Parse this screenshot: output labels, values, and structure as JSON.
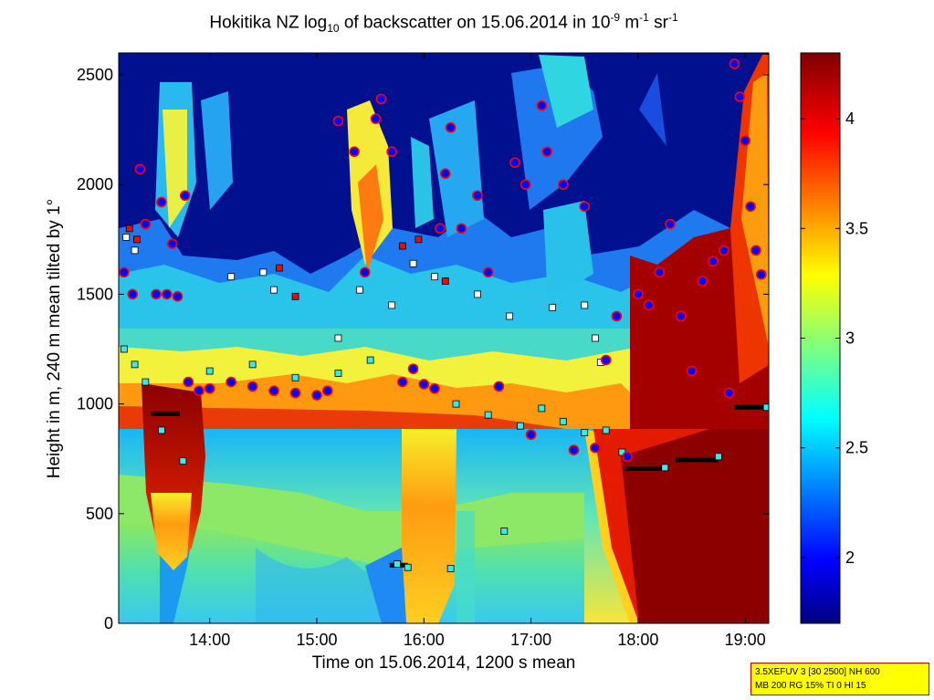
{
  "chart_data": {
    "type": "heatmap",
    "title": {
      "prefix": "Hokitika NZ log",
      "log_base": "10",
      "middle": " of backscatter on 15.06.2014 in 10",
      "exp1": "-9",
      "mid2": " m",
      "exp2": "-1",
      "mid3": " sr",
      "exp3": "-1"
    },
    "xlabel": "Time on 15.06.2014, 1200 s mean",
    "ylabel": "Height in m, 240 m mean tilted by 1°",
    "x_ticks": [
      "14:00",
      "15:00",
      "16:00",
      "17:00",
      "18:00",
      "19:00"
    ],
    "x_tick_hours": [
      14,
      15,
      16,
      17,
      18,
      19
    ],
    "xlim_hours": [
      13.15,
      19.22
    ],
    "y_ticks": [
      0,
      500,
      1000,
      1500,
      2000,
      2500
    ],
    "ylim": [
      0,
      2600
    ],
    "colorbar": {
      "ticks": [
        2,
        2.5,
        3,
        3.5,
        4
      ],
      "range": [
        1.7,
        4.3
      ],
      "colormap": "jet"
    },
    "cloud_base_black_segments": [
      {
        "t0": 13.45,
        "t1": 13.72,
        "h": 955
      },
      {
        "t0": 15.68,
        "t1": 15.85,
        "h": 265
      },
      {
        "t0": 17.88,
        "t1": 18.22,
        "h": 705
      },
      {
        "t0": 18.35,
        "t1": 18.75,
        "h": 745
      },
      {
        "t0": 18.9,
        "t1": 19.2,
        "h": 985
      }
    ],
    "layer_top_red_blue_markers": [
      {
        "t": 13.2,
        "h": 1600
      },
      {
        "t": 13.28,
        "h": 1500
      },
      {
        "t": 13.35,
        "h": 2070
      },
      {
        "t": 13.4,
        "h": 1820
      },
      {
        "t": 13.5,
        "h": 1500
      },
      {
        "t": 13.6,
        "h": 1500
      },
      {
        "t": 13.7,
        "h": 1490
      },
      {
        "t": 13.55,
        "h": 1920
      },
      {
        "t": 13.65,
        "h": 1730
      },
      {
        "t": 13.77,
        "h": 1950
      },
      {
        "t": 13.8,
        "h": 1100
      },
      {
        "t": 13.9,
        "h": 1060
      },
      {
        "t": 14.0,
        "h": 1070
      },
      {
        "t": 14.2,
        "h": 1100
      },
      {
        "t": 14.4,
        "h": 1080
      },
      {
        "t": 14.6,
        "h": 1060
      },
      {
        "t": 14.8,
        "h": 1050
      },
      {
        "t": 15.0,
        "h": 1040
      },
      {
        "t": 15.1,
        "h": 1060
      },
      {
        "t": 15.2,
        "h": 2290
      },
      {
        "t": 15.35,
        "h": 2150
      },
      {
        "t": 15.45,
        "h": 1600
      },
      {
        "t": 15.55,
        "h": 2300
      },
      {
        "t": 15.6,
        "h": 2390
      },
      {
        "t": 15.7,
        "h": 2150
      },
      {
        "t": 15.8,
        "h": 1100
      },
      {
        "t": 15.9,
        "h": 1160
      },
      {
        "t": 16.0,
        "h": 1090
      },
      {
        "t": 16.1,
        "h": 1070
      },
      {
        "t": 16.15,
        "h": 1800
      },
      {
        "t": 16.2,
        "h": 2050
      },
      {
        "t": 16.25,
        "h": 2260
      },
      {
        "t": 16.35,
        "h": 1800
      },
      {
        "t": 16.5,
        "h": 1950
      },
      {
        "t": 16.6,
        "h": 1600
      },
      {
        "t": 16.7,
        "h": 1080
      },
      {
        "t": 16.85,
        "h": 2100
      },
      {
        "t": 16.95,
        "h": 2000
      },
      {
        "t": 17.0,
        "h": 860
      },
      {
        "t": 17.1,
        "h": 2360
      },
      {
        "t": 17.15,
        "h": 2150
      },
      {
        "t": 17.3,
        "h": 2000
      },
      {
        "t": 17.4,
        "h": 790
      },
      {
        "t": 17.5,
        "h": 1900
      },
      {
        "t": 17.6,
        "h": 800
      },
      {
        "t": 17.7,
        "h": 1200
      },
      {
        "t": 17.8,
        "h": 1400
      },
      {
        "t": 17.9,
        "h": 760
      },
      {
        "t": 18.0,
        "h": 1500
      },
      {
        "t": 18.1,
        "h": 1450
      },
      {
        "t": 18.2,
        "h": 1600
      },
      {
        "t": 18.3,
        "h": 1820
      },
      {
        "t": 18.4,
        "h": 1400
      },
      {
        "t": 18.5,
        "h": 1150
      },
      {
        "t": 18.6,
        "h": 1560
      },
      {
        "t": 18.7,
        "h": 1650
      },
      {
        "t": 18.8,
        "h": 1700
      },
      {
        "t": 18.85,
        "h": 1050
      },
      {
        "t": 18.9,
        "h": 2550
      },
      {
        "t": 18.95,
        "h": 2400
      },
      {
        "t": 19.0,
        "h": 2200
      },
      {
        "t": 19.05,
        "h": 1900
      },
      {
        "t": 19.1,
        "h": 1700
      },
      {
        "t": 19.15,
        "h": 1590
      }
    ],
    "cyan_markers": [
      {
        "t": 13.2,
        "h": 1250
      },
      {
        "t": 13.3,
        "h": 1180
      },
      {
        "t": 13.4,
        "h": 1100
      },
      {
        "t": 13.55,
        "h": 880
      },
      {
        "t": 13.75,
        "h": 740
      },
      {
        "t": 14.0,
        "h": 1150
      },
      {
        "t": 14.4,
        "h": 1180
      },
      {
        "t": 14.8,
        "h": 1120
      },
      {
        "t": 15.2,
        "h": 1140
      },
      {
        "t": 15.5,
        "h": 1200
      },
      {
        "t": 15.75,
        "h": 270
      },
      {
        "t": 15.85,
        "h": 255
      },
      {
        "t": 16.25,
        "h": 250
      },
      {
        "t": 16.3,
        "h": 1000
      },
      {
        "t": 16.6,
        "h": 950
      },
      {
        "t": 16.75,
        "h": 420
      },
      {
        "t": 16.9,
        "h": 900
      },
      {
        "t": 17.1,
        "h": 980
      },
      {
        "t": 17.3,
        "h": 920
      },
      {
        "t": 17.5,
        "h": 870
      },
      {
        "t": 17.7,
        "h": 880
      },
      {
        "t": 17.85,
        "h": 780
      },
      {
        "t": 18.25,
        "h": 710
      },
      {
        "t": 18.75,
        "h": 760
      },
      {
        "t": 19.2,
        "h": 985
      }
    ],
    "white_markers": [
      {
        "t": 13.22,
        "h": 1760
      },
      {
        "t": 13.3,
        "h": 1700
      },
      {
        "t": 14.2,
        "h": 1580
      },
      {
        "t": 14.5,
        "h": 1600
      },
      {
        "t": 14.6,
        "h": 1520
      },
      {
        "t": 15.2,
        "h": 1300
      },
      {
        "t": 15.4,
        "h": 1520
      },
      {
        "t": 15.7,
        "h": 1450
      },
      {
        "t": 15.9,
        "h": 1640
      },
      {
        "t": 16.1,
        "h": 1580
      },
      {
        "t": 16.5,
        "h": 1500
      },
      {
        "t": 16.8,
        "h": 1400
      },
      {
        "t": 17.2,
        "h": 1440
      },
      {
        "t": 17.5,
        "h": 1450
      },
      {
        "t": 17.6,
        "h": 1300
      },
      {
        "t": 17.65,
        "h": 1190
      }
    ],
    "red_markers": [
      {
        "t": 13.25,
        "h": 1800
      },
      {
        "t": 13.32,
        "h": 1750
      },
      {
        "t": 14.65,
        "h": 1620
      },
      {
        "t": 14.8,
        "h": 1490
      },
      {
        "t": 15.8,
        "h": 1720
      },
      {
        "t": 15.95,
        "h": 1750
      },
      {
        "t": 16.2,
        "h": 1560
      },
      {
        "t": 16.6,
        "h": 1600
      }
    ]
  },
  "info_box": {
    "line1": "3.5XEFUV 3 [30 2500] NH 600",
    "line2": "MB 200 RG 15% TI 0 HI 15"
  },
  "colors": {
    "marker_blue_fill": "#0000ff",
    "marker_red_edge": "#ff0000",
    "marker_cyan": "#3fe8e8",
    "cloud_base": "#000000",
    "info_box_bg": "#ffff00",
    "info_box_border": "#c00000"
  }
}
